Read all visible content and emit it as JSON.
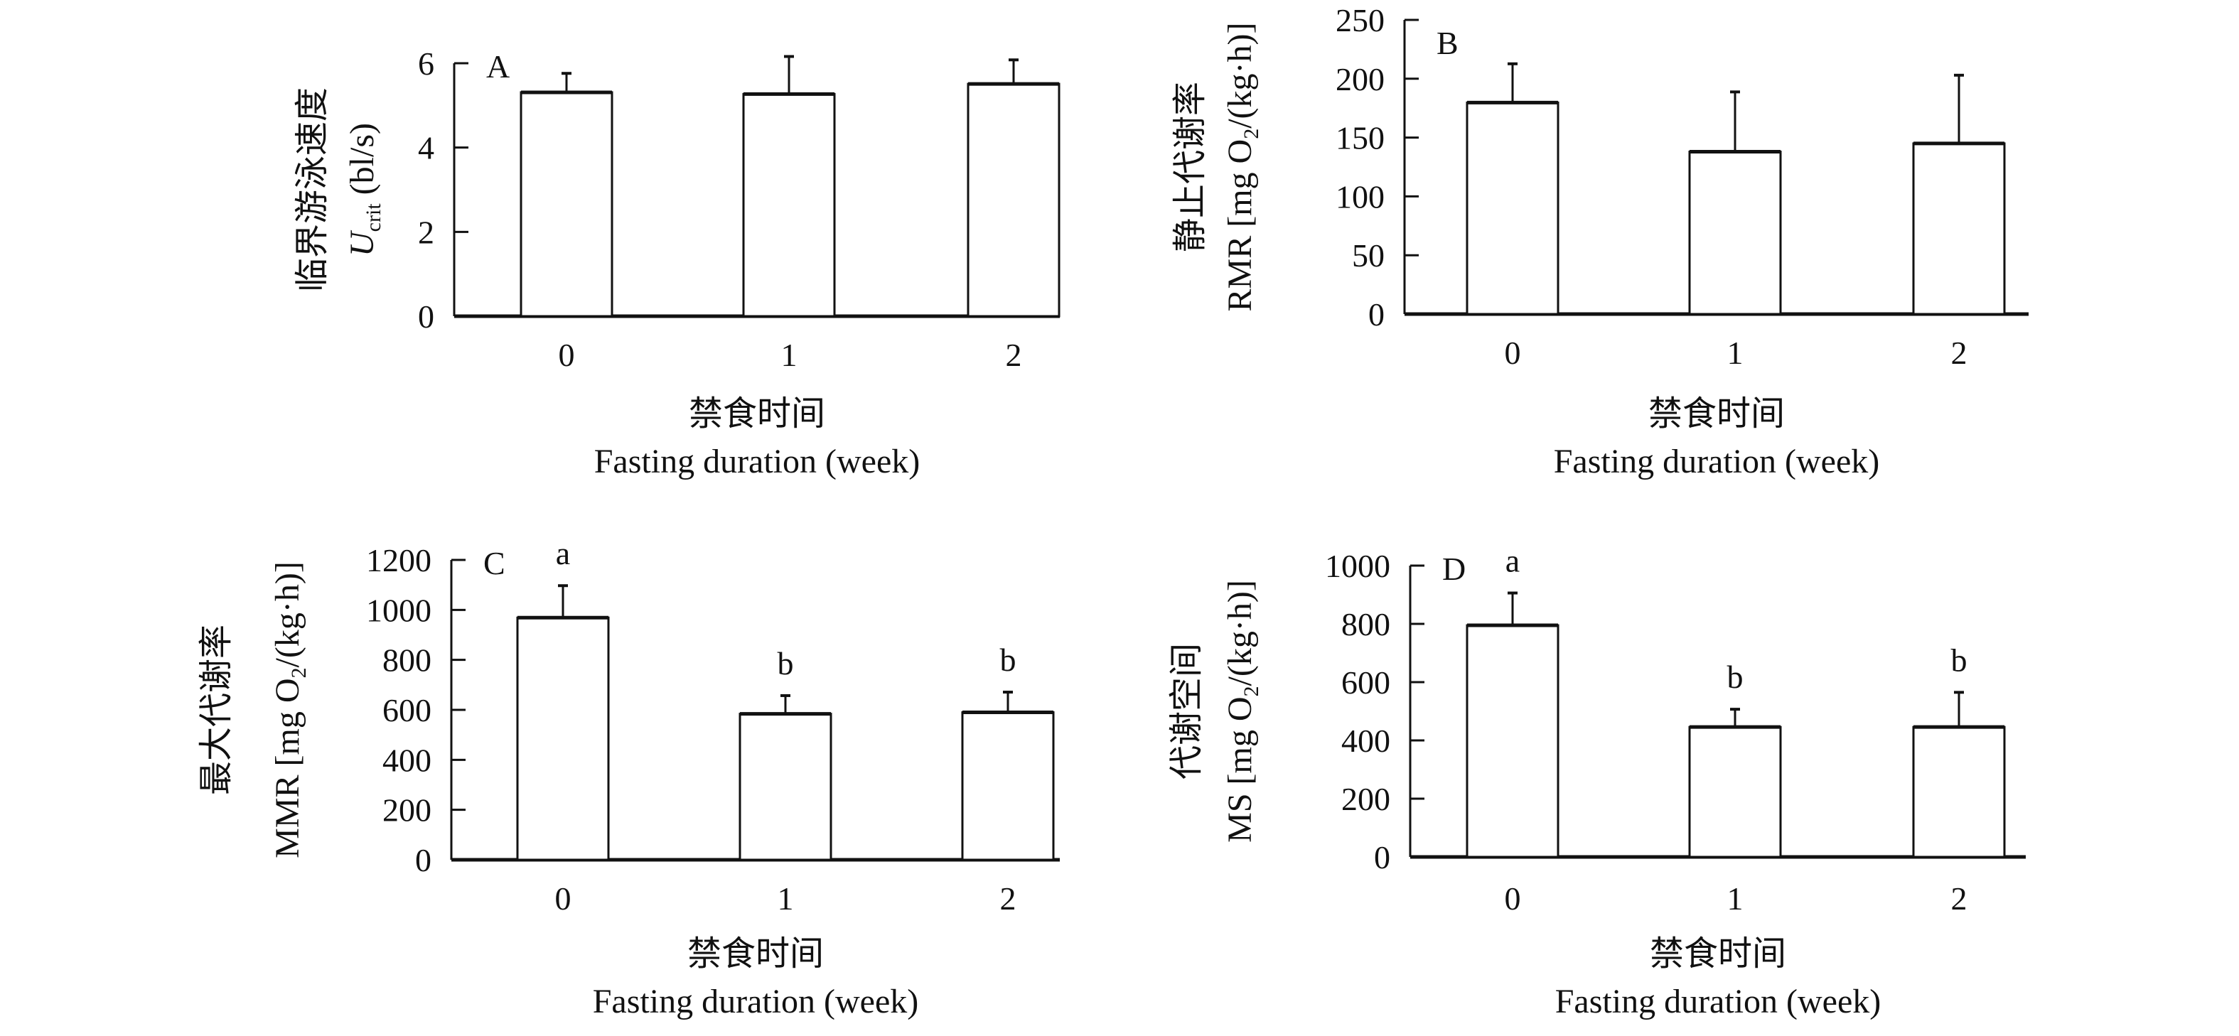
{
  "chart_data": [
    {
      "type": "bar",
      "panel_label": "A",
      "categories": [
        "0",
        "1",
        "2"
      ],
      "values": [
        5.31,
        5.27,
        5.51
      ],
      "error_upper": [
        5.76,
        6.16,
        6.08
      ],
      "significance_letters": [
        "",
        "",
        ""
      ],
      "yticks": [
        0,
        2,
        4,
        6
      ],
      "ylim": [
        0,
        6
      ],
      "ylabel_cn": "临界游泳速度",
      "ylabel_en": {
        "main": "U",
        "sub": "crit",
        "rest": " (bl/s)"
      },
      "xlabel_cn": "禁食时间",
      "xlabel_en": "Fasting duration (week)",
      "grid": false
    },
    {
      "type": "bar",
      "panel_label": "B",
      "categories": [
        "0",
        "1",
        "2"
      ],
      "values": [
        179.7,
        138,
        145
      ],
      "error_upper": [
        212.7,
        188.8,
        203
      ],
      "significance_letters": [
        "",
        "",
        ""
      ],
      "yticks": [
        0,
        50,
        100,
        150,
        200,
        250
      ],
      "ylim": [
        0,
        250
      ],
      "ylabel_cn": "静止代谢率",
      "ylabel_en": {
        "main": "RMR [mg O",
        "sub": "2",
        "rest": "/(kg·h)]"
      },
      "xlabel_cn": "禁食时间",
      "xlabel_en": "Fasting duration (week)",
      "grid": false
    },
    {
      "type": "bar",
      "panel_label": "C",
      "categories": [
        "0",
        "1",
        "2"
      ],
      "values": [
        969,
        584,
        590
      ],
      "error_upper": [
        1097,
        657,
        671
      ],
      "significance_letters": [
        "a",
        "b",
        "b"
      ],
      "yticks": [
        0,
        200,
        400,
        600,
        800,
        1000,
        1200
      ],
      "ylim": [
        0,
        1200
      ],
      "ylabel_cn": "最大代谢率",
      "ylabel_en": {
        "main": "MMR [mg O",
        "sub": "2",
        "rest": "/(kg·h)]"
      },
      "xlabel_cn": "禁食时间",
      "xlabel_en": "Fasting duration (week)",
      "grid": false
    },
    {
      "type": "bar",
      "panel_label": "D",
      "categories": [
        "0",
        "1",
        "2"
      ],
      "values": [
        795,
        446,
        446
      ],
      "error_upper": [
        906,
        507,
        565
      ],
      "significance_letters": [
        "a",
        "b",
        "b"
      ],
      "yticks": [
        0,
        200,
        400,
        600,
        800,
        1000
      ],
      "ylim": [
        0,
        1000
      ],
      "ylabel_cn": "代谢空间",
      "ylabel_en": {
        "main": "MS [mg O",
        "sub": "2",
        "rest": "/(kg·h)]"
      },
      "xlabel_cn": "禁食时间",
      "xlabel_en": "Fasting duration (week)",
      "grid": false
    }
  ],
  "colors": {
    "bar_fill": "#ffffff",
    "stroke": "#111111"
  }
}
